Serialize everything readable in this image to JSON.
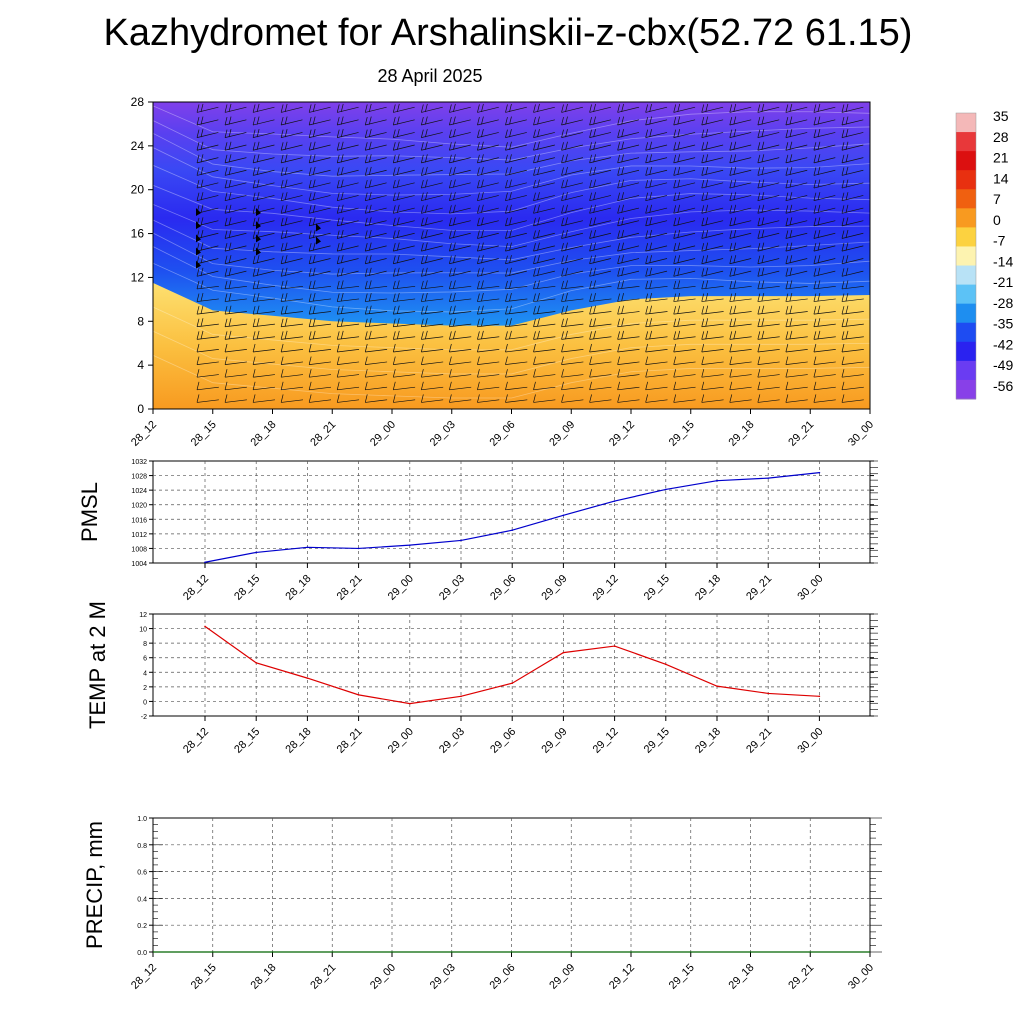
{
  "header": {
    "title": "Kazhydromet for Arshalinskii-z-cbx(52.72 61.15)",
    "date": "28 April 2025"
  },
  "chart_data": [
    {
      "type": "heatmap",
      "name": "upper-air-temperature-section",
      "title": "",
      "ylabel": "",
      "ylim": [
        0,
        28
      ],
      "y_ticks": [
        "0",
        "4",
        "8",
        "12",
        "16",
        "20",
        "24",
        "28"
      ],
      "x_ticks": [
        "28_12",
        "28_15",
        "28_18",
        "28_21",
        "29_00",
        "29_03",
        "29_06",
        "29_09",
        "29_12",
        "29_15",
        "29_18",
        "29_21",
        "30_00"
      ],
      "freezing_level": [
        11.5,
        9.0,
        8.5,
        8.0,
        7.8,
        7.6,
        7.6,
        9.0,
        10.0,
        10.3,
        10.3,
        10.3,
        10.4
      ],
      "wind_barbs": true,
      "colorbar": {
        "labels": [
          "35",
          "28",
          "21",
          "14",
          "7",
          "0",
          "-7",
          "-14",
          "-21",
          "-28",
          "-35",
          "-42",
          "-49",
          "-56"
        ],
        "colors": [
          "#f4b8b8",
          "#e8383a",
          "#dc1010",
          "#e83010",
          "#f06010",
          "#f89a20",
          "#fcd240",
          "#fdf3b0",
          "#b8e2f6",
          "#5cc2f6",
          "#1e8ef0",
          "#1e4cf2",
          "#2a22f0",
          "#6a3cf2",
          "#8840e8"
        ]
      }
    },
    {
      "type": "line",
      "name": "pmsl",
      "ylabel": "PMSL",
      "ylim": [
        1004,
        1032
      ],
      "y_ticks": [
        "1004",
        "1008",
        "1012",
        "1016",
        "1020",
        "1024",
        "1028",
        "1032"
      ],
      "x_ticks": [
        "28_12",
        "28_15",
        "28_18",
        "28_21",
        "29_00",
        "29_03",
        "29_06",
        "29_09",
        "29_12",
        "29_15",
        "29_18",
        "29_21",
        "30_00"
      ],
      "series": [
        {
          "values": [
            1004.2,
            1006.9,
            1008.3,
            1008.0,
            1008.9,
            1010.2,
            1013.0,
            1017.1,
            1021.0,
            1024.2,
            1026.6,
            1027.3,
            1028.8
          ],
          "color": "#0000cc"
        }
      ]
    },
    {
      "type": "line",
      "name": "temp-2m",
      "ylabel": "TEMP at 2 M",
      "ylim": [
        -2,
        12
      ],
      "y_ticks": [
        "-2",
        "0",
        "2",
        "4",
        "6",
        "8",
        "10",
        "12"
      ],
      "x_ticks": [
        "28_12",
        "28_15",
        "28_18",
        "28_21",
        "29_00",
        "29_03",
        "29_06",
        "29_09",
        "29_12",
        "29_15",
        "29_18",
        "29_21",
        "30_00"
      ],
      "series": [
        {
          "values": [
            10.3,
            5.3,
            3.2,
            0.9,
            -0.3,
            0.7,
            2.5,
            6.7,
            7.6,
            5.1,
            2.1,
            1.1,
            0.7
          ],
          "color": "#dd0000"
        }
      ]
    },
    {
      "type": "line",
      "name": "precip",
      "ylabel": "PRECIP, mm",
      "ylim": [
        0,
        1.0
      ],
      "y_ticks": [
        "0.0",
        "0.2",
        "0.4",
        "0.6",
        "0.8",
        "1.0"
      ],
      "x_ticks": [
        "28_12",
        "28_15",
        "28_18",
        "28_21",
        "29_00",
        "29_03",
        "29_06",
        "29_09",
        "29_12",
        "29_15",
        "29_18",
        "29_21",
        "30_00"
      ],
      "series": [
        {
          "values": [
            0,
            0,
            0,
            0,
            0,
            0,
            0,
            0,
            0,
            0,
            0,
            0,
            0
          ],
          "color": "#006400"
        }
      ]
    }
  ]
}
